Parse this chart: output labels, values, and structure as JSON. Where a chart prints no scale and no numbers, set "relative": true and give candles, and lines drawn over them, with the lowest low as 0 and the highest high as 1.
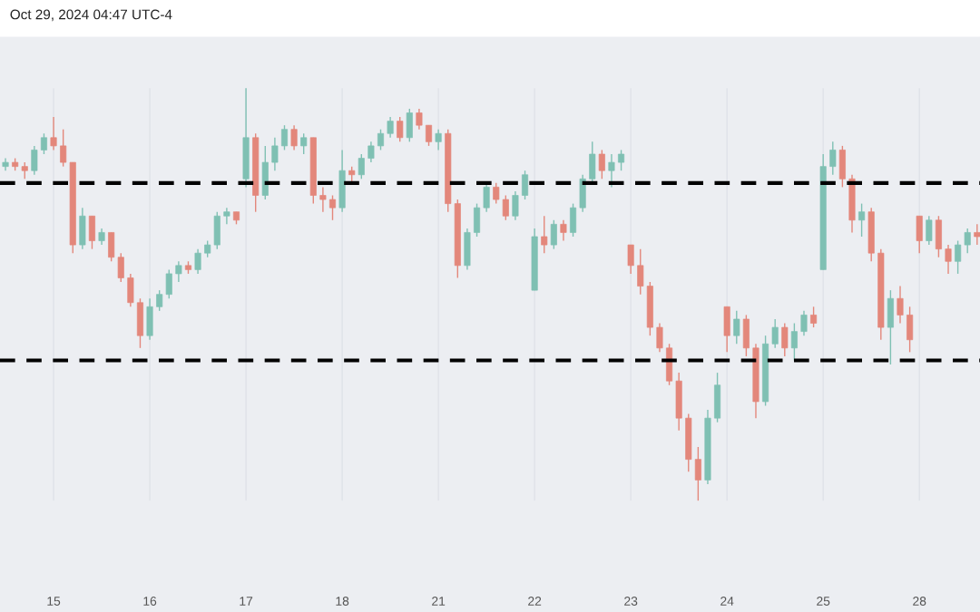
{
  "chart_data": {
    "type": "candlestick",
    "relative": true,
    "tick_labels": "x",
    "grid": "x",
    "annotations": [
      "Oct 29, 2024 04:47 UTC-4"
    ],
    "categories": [
      null,
      null,
      null,
      null,
      null,
      "15",
      null,
      null,
      null,
      null,
      null,
      null,
      null,
      null,
      null,
      "16",
      null,
      null,
      null,
      null,
      null,
      null,
      null,
      null,
      null,
      "17",
      null,
      null,
      null,
      null,
      null,
      null,
      null,
      null,
      null,
      "18",
      null,
      null,
      null,
      null,
      null,
      null,
      null,
      null,
      null,
      "21",
      null,
      null,
      null,
      null,
      null,
      null,
      null,
      null,
      null,
      "22",
      null,
      null,
      null,
      null,
      null,
      null,
      null,
      null,
      null,
      "23",
      null,
      null,
      null,
      null,
      null,
      null,
      null,
      null,
      null,
      "24",
      null,
      null,
      null,
      null,
      null,
      null,
      null,
      null,
      null,
      "25",
      null,
      null,
      null,
      null,
      null,
      null,
      null,
      null,
      null,
      "28",
      null,
      null,
      null,
      null,
      null,
      null
    ],
    "ohlc": [
      [
        0.81,
        0.83,
        0.8,
        0.82
      ],
      [
        0.82,
        0.83,
        0.8,
        0.81
      ],
      [
        0.81,
        0.82,
        0.78,
        0.8
      ],
      [
        0.8,
        0.86,
        0.79,
        0.85
      ],
      [
        0.85,
        0.89,
        0.84,
        0.88
      ],
      [
        0.88,
        0.93,
        0.85,
        0.86
      ],
      [
        0.86,
        0.9,
        0.81,
        0.82
      ],
      [
        0.82,
        0.82,
        0.6,
        0.62
      ],
      [
        0.62,
        0.71,
        0.61,
        0.69
      ],
      [
        0.69,
        0.69,
        0.61,
        0.63
      ],
      [
        0.63,
        0.66,
        0.62,
        0.65
      ],
      [
        0.65,
        0.65,
        0.58,
        0.59
      ],
      [
        0.59,
        0.6,
        0.53,
        0.54
      ],
      [
        0.54,
        0.55,
        0.47,
        0.48
      ],
      [
        0.48,
        0.49,
        0.37,
        0.4
      ],
      [
        0.4,
        0.49,
        0.39,
        0.47
      ],
      [
        0.47,
        0.51,
        0.46,
        0.5
      ],
      [
        0.5,
        0.56,
        0.49,
        0.55
      ],
      [
        0.55,
        0.58,
        0.53,
        0.57
      ],
      [
        0.57,
        0.58,
        0.55,
        0.56
      ],
      [
        0.56,
        0.61,
        0.55,
        0.6
      ],
      [
        0.6,
        0.63,
        0.59,
        0.62
      ],
      [
        0.62,
        0.7,
        0.61,
        0.69
      ],
      [
        0.69,
        0.71,
        0.67,
        0.7
      ],
      [
        0.7,
        0.7,
        0.67,
        0.68
      ],
      [
        0.78,
        1.0,
        0.76,
        0.88
      ],
      [
        0.88,
        0.89,
        0.7,
        0.74
      ],
      [
        0.74,
        0.86,
        0.73,
        0.82
      ],
      [
        0.82,
        0.88,
        0.8,
        0.86
      ],
      [
        0.86,
        0.91,
        0.85,
        0.9
      ],
      [
        0.9,
        0.91,
        0.85,
        0.86
      ],
      [
        0.86,
        0.89,
        0.84,
        0.88
      ],
      [
        0.88,
        0.88,
        0.72,
        0.74
      ],
      [
        0.74,
        0.76,
        0.7,
        0.73
      ],
      [
        0.73,
        0.74,
        0.68,
        0.71
      ],
      [
        0.71,
        0.85,
        0.7,
        0.8
      ],
      [
        0.8,
        0.81,
        0.77,
        0.79
      ],
      [
        0.79,
        0.84,
        0.78,
        0.83
      ],
      [
        0.83,
        0.87,
        0.82,
        0.86
      ],
      [
        0.86,
        0.9,
        0.85,
        0.89
      ],
      [
        0.89,
        0.93,
        0.88,
        0.92
      ],
      [
        0.92,
        0.93,
        0.87,
        0.88
      ],
      [
        0.88,
        0.95,
        0.87,
        0.94
      ],
      [
        0.94,
        0.95,
        0.9,
        0.91
      ],
      [
        0.91,
        0.91,
        0.86,
        0.87
      ],
      [
        0.87,
        0.9,
        0.85,
        0.89
      ],
      [
        0.89,
        0.9,
        0.7,
        0.72
      ],
      [
        0.72,
        0.73,
        0.54,
        0.57
      ],
      [
        0.57,
        0.66,
        0.56,
        0.65
      ],
      [
        0.65,
        0.72,
        0.64,
        0.71
      ],
      [
        0.71,
        0.77,
        0.7,
        0.76
      ],
      [
        0.76,
        0.77,
        0.72,
        0.73
      ],
      [
        0.73,
        0.74,
        0.68,
        0.69
      ],
      [
        0.69,
        0.75,
        0.68,
        0.74
      ],
      [
        0.74,
        0.8,
        0.73,
        0.79
      ],
      [
        0.51,
        0.66,
        0.51,
        0.64
      ],
      [
        0.64,
        0.69,
        0.6,
        0.62
      ],
      [
        0.62,
        0.68,
        0.61,
        0.67
      ],
      [
        0.67,
        0.68,
        0.63,
        0.65
      ],
      [
        0.65,
        0.72,
        0.64,
        0.71
      ],
      [
        0.71,
        0.79,
        0.7,
        0.78
      ],
      [
        0.78,
        0.87,
        0.77,
        0.84
      ],
      [
        0.84,
        0.85,
        0.78,
        0.8
      ],
      [
        0.8,
        0.84,
        0.76,
        0.82
      ],
      [
        0.82,
        0.85,
        0.8,
        0.84
      ],
      [
        0.62,
        0.62,
        0.55,
        0.57
      ],
      [
        0.57,
        0.61,
        0.5,
        0.52
      ],
      [
        0.52,
        0.53,
        0.4,
        0.42
      ],
      [
        0.42,
        0.43,
        0.36,
        0.37
      ],
      [
        0.37,
        0.38,
        0.28,
        0.29
      ],
      [
        0.29,
        0.31,
        0.17,
        0.2
      ],
      [
        0.2,
        0.21,
        0.07,
        0.1
      ],
      [
        0.1,
        0.13,
        0.0,
        0.05
      ],
      [
        0.05,
        0.22,
        0.04,
        0.2
      ],
      [
        0.2,
        0.31,
        0.19,
        0.28
      ],
      [
        0.47,
        0.47,
        0.36,
        0.4
      ],
      [
        0.4,
        0.46,
        0.38,
        0.44
      ],
      [
        0.44,
        0.45,
        0.35,
        0.37
      ],
      [
        0.37,
        0.38,
        0.2,
        0.24
      ],
      [
        0.24,
        0.4,
        0.23,
        0.38
      ],
      [
        0.38,
        0.44,
        0.37,
        0.42
      ],
      [
        0.42,
        0.43,
        0.35,
        0.37
      ],
      [
        0.37,
        0.43,
        0.34,
        0.41
      ],
      [
        0.41,
        0.46,
        0.4,
        0.45
      ],
      [
        0.45,
        0.47,
        0.42,
        0.43
      ],
      [
        0.56,
        0.84,
        0.56,
        0.81
      ],
      [
        0.81,
        0.87,
        0.79,
        0.85
      ],
      [
        0.85,
        0.86,
        0.76,
        0.78
      ],
      [
        0.78,
        0.79,
        0.65,
        0.68
      ],
      [
        0.68,
        0.72,
        0.64,
        0.7
      ],
      [
        0.7,
        0.71,
        0.58,
        0.6
      ],
      [
        0.6,
        0.61,
        0.39,
        0.42
      ],
      [
        0.42,
        0.51,
        0.33,
        0.49
      ],
      [
        0.49,
        0.52,
        0.43,
        0.45
      ],
      [
        0.45,
        0.47,
        0.36,
        0.39
      ],
      [
        0.69,
        0.69,
        0.6,
        0.63
      ],
      [
        0.63,
        0.69,
        0.62,
        0.68
      ],
      [
        0.68,
        0.69,
        0.59,
        0.61
      ],
      [
        0.61,
        0.62,
        0.55,
        0.58
      ],
      [
        0.58,
        0.63,
        0.55,
        0.62
      ],
      [
        0.62,
        0.66,
        0.6,
        0.65
      ],
      [
        0.65,
        0.67,
        0.62,
        0.64
      ]
    ],
    "ref_lines": [
      {
        "axis": "y",
        "value": 0.77,
        "color": "#000000",
        "line_style": "dashed"
      },
      {
        "axis": "y",
        "value": 0.34,
        "color": "#000000",
        "line_style": "dashed"
      }
    ]
  }
}
